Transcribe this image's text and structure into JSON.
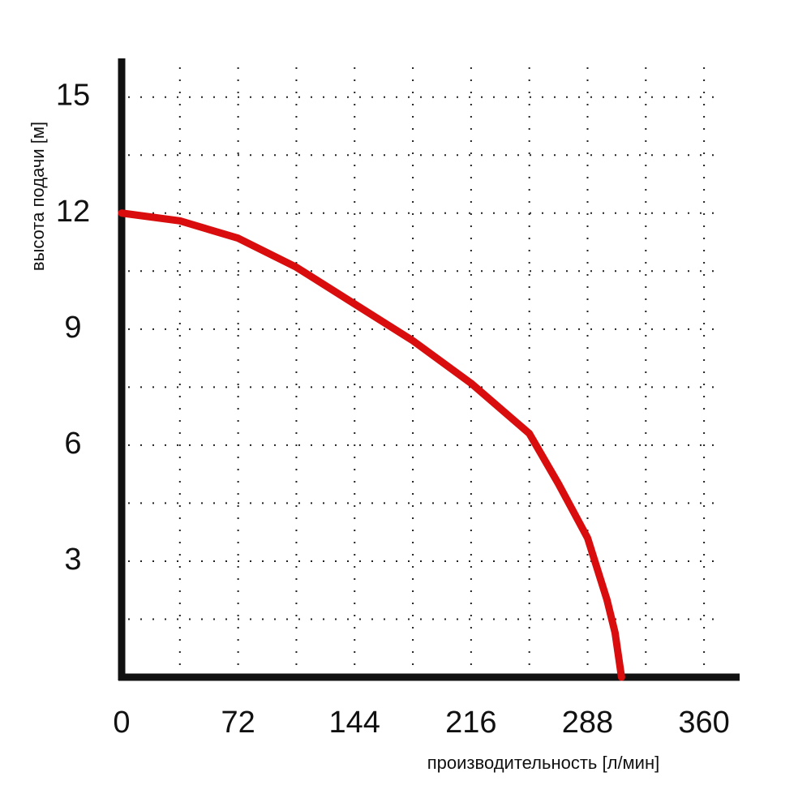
{
  "chart_data": {
    "type": "line",
    "x_label": "производительность [л/мин]",
    "y_label": "высота подачи [м]",
    "x": [
      0,
      36,
      72,
      108,
      144,
      180,
      216,
      252,
      270,
      288,
      300,
      305,
      309
    ],
    "series": [
      {
        "color": "#d90d0d",
        "values": [
          12,
          11.8,
          11.35,
          10.6,
          9.65,
          8.7,
          7.6,
          6.3,
          5.0,
          3.6,
          2.0,
          1.15,
          0
        ]
      }
    ],
    "xlim": [
      0,
      382
    ],
    "ylim": [
      0,
      16
    ],
    "xticks": [
      0,
      72,
      144,
      216,
      288,
      360
    ],
    "yticks": [
      3,
      6,
      9,
      12,
      15
    ],
    "x_minor_grid": [
      36,
      108,
      180,
      252,
      324
    ],
    "y_minor_grid": [
      1.5,
      4.5,
      7.5,
      10.5,
      13.5
    ],
    "grid": true
  }
}
